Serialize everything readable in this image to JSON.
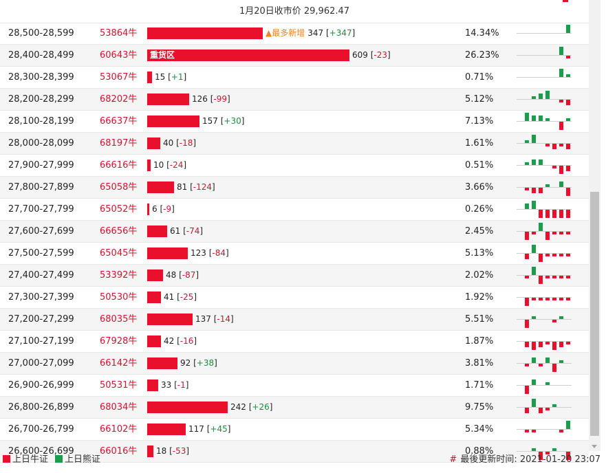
{
  "header": {
    "title": "1月20日收市价 29,962.47"
  },
  "highlight": {
    "new_label": "▲最多新增",
    "zone_label": "重货区"
  },
  "colors": {
    "bull": "#e8102a",
    "bear": "#1b9e4b",
    "positive_change": "#1b8e3e",
    "negative_change": "#d0142c"
  },
  "rows": [
    {
      "range": "28,500-28,599",
      "code": "53864牛",
      "count": 347,
      "count_text": "347",
      "change": "+347",
      "pct": "14.34%",
      "spark": [
        0,
        0,
        0,
        0,
        0,
        0,
        0,
        -3
      ]
    },
    {
      "range": "28,400-28,499",
      "code": "60643牛",
      "count": 609,
      "count_text": "609",
      "change": "-23",
      "pct": "26.23%",
      "spark": [
        0,
        0,
        0,
        0,
        0,
        0,
        -3,
        1
      ]
    },
    {
      "range": "28,300-28,399",
      "code": "53067牛",
      "count": 15,
      "count_text": "15",
      "change": "+1",
      "pct": "0.71%",
      "spark": [
        0,
        0,
        0,
        0,
        0,
        0,
        -3,
        -1
      ]
    },
    {
      "range": "28,200-28,299",
      "code": "68202牛",
      "count": 126,
      "count_text": "126",
      "change": "-99",
      "pct": "5.12%",
      "spark": [
        0,
        0,
        -1,
        -2,
        -3,
        0,
        1,
        2
      ]
    },
    {
      "range": "28,100-28,199",
      "code": "66637牛",
      "count": 157,
      "count_text": "157",
      "change": "+30",
      "pct": "7.13%",
      "spark": [
        0,
        -3,
        -2,
        -2,
        -1,
        0,
        3,
        -1
      ]
    },
    {
      "range": "28,000-28,099",
      "code": "68197牛",
      "count": 40,
      "count_text": "40",
      "change": "-18",
      "pct": "1.61%",
      "spark": [
        0,
        -1,
        -3,
        0,
        1,
        2,
        1,
        2
      ]
    },
    {
      "range": "27,900-27,999",
      "code": "66616牛",
      "count": 10,
      "count_text": "10",
      "change": "-24",
      "pct": "0.51%",
      "spark": [
        0,
        -1,
        -2,
        -2,
        0,
        1,
        3,
        2
      ]
    },
    {
      "range": "27,800-27,899",
      "code": "65058牛",
      "count": 81,
      "count_text": "81",
      "change": "-124",
      "pct": "3.66%",
      "spark": [
        0,
        1,
        2,
        2,
        -1,
        0,
        -2,
        3
      ]
    },
    {
      "range": "27,700-27,799",
      "code": "65052牛",
      "count": 6,
      "count_text": "6",
      "change": "-9",
      "pct": "0.26%",
      "spark": [
        0,
        -2,
        -3,
        3,
        3,
        3,
        3,
        3
      ]
    },
    {
      "range": "27,600-27,699",
      "code": "66656牛",
      "count": 61,
      "count_text": "61",
      "change": "-74",
      "pct": "2.45%",
      "spark": [
        0,
        3,
        1,
        -3,
        3,
        1,
        1,
        1
      ]
    },
    {
      "range": "27,500-27,599",
      "code": "65045牛",
      "count": 123,
      "count_text": "123",
      "change": "-84",
      "pct": "5.13%",
      "spark": [
        0,
        2,
        -3,
        3,
        1,
        1,
        1,
        1
      ]
    },
    {
      "range": "27,400-27,499",
      "code": "53392牛",
      "count": 48,
      "count_text": "48",
      "change": "-87",
      "pct": "2.02%",
      "spark": [
        0,
        1,
        -3,
        3,
        1,
        1,
        1,
        1
      ]
    },
    {
      "range": "27,300-27,399",
      "code": "50530牛",
      "count": 41,
      "count_text": "41",
      "change": "-25",
      "pct": "1.92%",
      "spark": [
        0,
        3,
        1,
        1,
        1,
        1,
        1,
        1
      ]
    },
    {
      "range": "27,200-27,299",
      "code": "68035牛",
      "count": 137,
      "count_text": "137",
      "change": "-14",
      "pct": "5.51%",
      "spark": [
        0,
        3,
        -1,
        0,
        0,
        1,
        -1,
        0
      ]
    },
    {
      "range": "27,100-27,199",
      "code": "67928牛",
      "count": 42,
      "count_text": "42",
      "change": "-16",
      "pct": "1.87%",
      "spark": [
        0,
        2,
        3,
        2,
        1,
        3,
        2,
        1
      ]
    },
    {
      "range": "27,000-27,099",
      "code": "66142牛",
      "count": 92,
      "count_text": "92",
      "change": "+38",
      "pct": "3.81%",
      "spark": [
        0,
        1,
        -2,
        1,
        -2,
        3,
        -1,
        0
      ]
    },
    {
      "range": "26,900-26,999",
      "code": "50531牛",
      "count": 33,
      "count_text": "33",
      "change": "-1",
      "pct": "1.71%",
      "spark": [
        0,
        3,
        -2,
        0,
        -1,
        0,
        0,
        0
      ]
    },
    {
      "range": "26,800-26,899",
      "code": "68034牛",
      "count": 242,
      "count_text": "242",
      "change": "+26",
      "pct": "9.75%",
      "spark": [
        0,
        2,
        -3,
        2,
        1,
        -1,
        0,
        0
      ]
    },
    {
      "range": "26,700-26,799",
      "code": "66102牛",
      "count": 117,
      "count_text": "117",
      "change": "+45",
      "pct": "5.34%",
      "spark": [
        0,
        1,
        1,
        0,
        0,
        0,
        1,
        -3
      ]
    },
    {
      "range": "26,600-26,699",
      "code": "66016牛",
      "count": 18,
      "count_text": "18",
      "change": "-53",
      "pct": "0.88%",
      "spark": [
        0,
        0,
        -1,
        3,
        1,
        -1,
        0,
        3
      ]
    }
  ],
  "legend": {
    "bull": "上日牛证",
    "bear": "上日熊证"
  },
  "footer": {
    "hash": "#",
    "updated": "最後更新时间: 2021-01-20 23:07"
  }
}
